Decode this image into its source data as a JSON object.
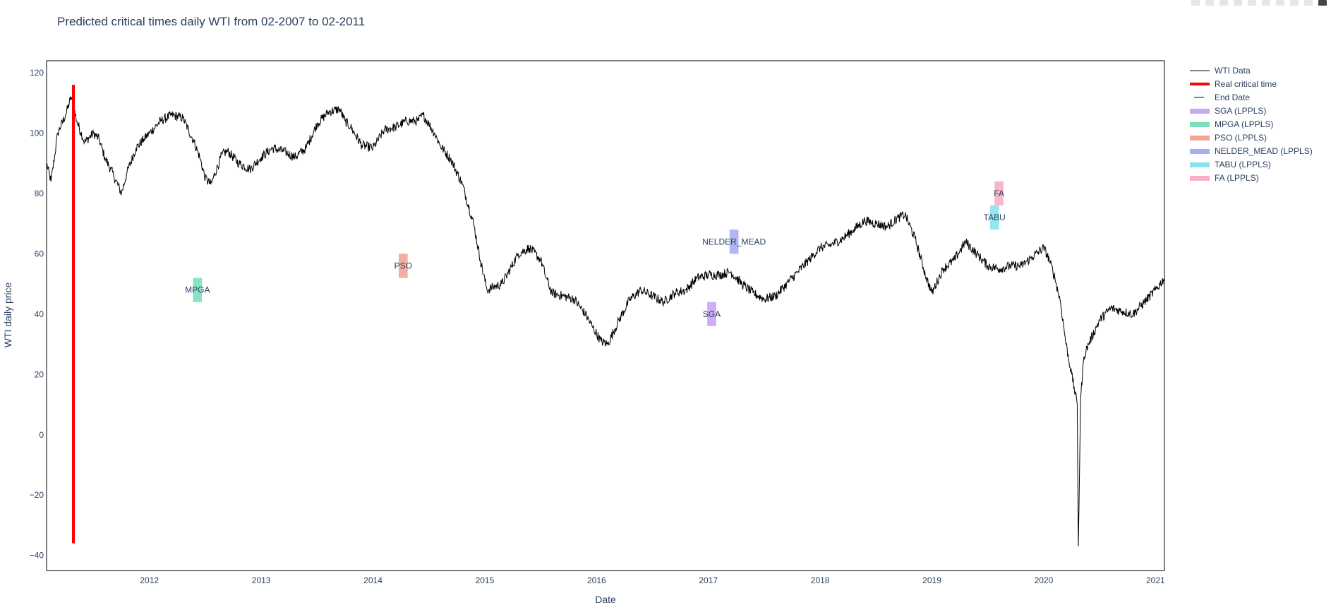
{
  "chart_data": {
    "type": "line",
    "title": "Predicted critical times daily WTI from 02-2007 to 02-2011",
    "xlabel": "Date",
    "ylabel": "WTI daily price",
    "xlim": [
      2011.08,
      2021.08
    ],
    "ylim": [
      -45,
      124
    ],
    "yticks": [
      -40,
      -20,
      0,
      20,
      40,
      60,
      80,
      100,
      120
    ],
    "xticks": [
      2012,
      2013,
      2014,
      2015,
      2016,
      2017,
      2018,
      2019,
      2020,
      2021
    ],
    "grid": false,
    "legend_position": "right",
    "series": [
      {
        "name": "WTI Data",
        "color": "#000000",
        "x": [
          2011.08,
          2011.12,
          2011.18,
          2011.25,
          2011.3,
          2011.35,
          2011.42,
          2011.5,
          2011.55,
          2011.6,
          2011.68,
          2011.75,
          2011.8,
          2011.88,
          2011.95,
          2012.0,
          2012.1,
          2012.2,
          2012.3,
          2012.4,
          2012.45,
          2012.5,
          2012.55,
          2012.65,
          2012.7,
          2012.8,
          2012.9,
          2013.0,
          2013.1,
          2013.2,
          2013.3,
          2013.4,
          2013.5,
          2013.6,
          2013.7,
          2013.75,
          2013.8,
          2013.9,
          2014.0,
          2014.1,
          2014.2,
          2014.3,
          2014.4,
          2014.45,
          2014.5,
          2014.55,
          2014.6,
          2014.7,
          2014.8,
          2014.9,
          2014.96,
          2015.02,
          2015.08,
          2015.15,
          2015.2,
          2015.3,
          2015.4,
          2015.5,
          2015.55,
          2015.6,
          2015.7,
          2015.8,
          2015.9,
          2015.96,
          2016.04,
          2016.1,
          2016.2,
          2016.3,
          2016.4,
          2016.5,
          2016.6,
          2016.7,
          2016.8,
          2016.9,
          2017.0,
          2017.1,
          2017.2,
          2017.3,
          2017.4,
          2017.5,
          2017.6,
          2017.7,
          2017.8,
          2017.9,
          2018.0,
          2018.1,
          2018.2,
          2018.3,
          2018.4,
          2018.5,
          2018.6,
          2018.7,
          2018.76,
          2018.85,
          2018.95,
          2019.0,
          2019.1,
          2019.2,
          2019.3,
          2019.4,
          2019.5,
          2019.6,
          2019.7,
          2019.8,
          2019.9,
          2020.0,
          2020.05,
          2020.1,
          2020.15,
          2020.2,
          2020.25,
          2020.3,
          2020.31,
          2020.33,
          2020.36,
          2020.4,
          2020.5,
          2020.6,
          2020.7,
          2020.8,
          2020.9,
          2021.0,
          2021.08
        ],
        "y": [
          90,
          84,
          100,
          106,
          112,
          104,
          97,
          100,
          98,
          92,
          86,
          80,
          87,
          95,
          98,
          100,
          104,
          106,
          105,
          97,
          92,
          85,
          83,
          93,
          94,
          90,
          88,
          92,
          95,
          94,
          92,
          95,
          103,
          107,
          108,
          104,
          102,
          96,
          95,
          101,
          102,
          104,
          104,
          106,
          103,
          100,
          96,
          91,
          83,
          70,
          58,
          48,
          49,
          50,
          53,
          60,
          62,
          58,
          52,
          47,
          46,
          45,
          40,
          36,
          31,
          30,
          38,
          45,
          48,
          46,
          44,
          47,
          48,
          52,
          53,
          53,
          54,
          50,
          47,
          45,
          46,
          50,
          54,
          58,
          62,
          63,
          65,
          68,
          71,
          70,
          69,
          72,
          73,
          65,
          52,
          47,
          55,
          58,
          64,
          60,
          56,
          55,
          56,
          56,
          59,
          62,
          58,
          52,
          44,
          30,
          20,
          10,
          -37,
          12,
          26,
          30,
          38,
          42,
          41,
          40,
          44,
          48,
          52
        ]
      }
    ],
    "critical_time": {
      "name": "Real critical time",
      "color": "#ff0000",
      "x": 2011.32,
      "y0": -36,
      "y1": 116
    },
    "end_date": {
      "name": "End Date",
      "color": "#7f7f7f"
    },
    "windows": [
      {
        "name": "SGA (LPPLS)",
        "label": "SGA",
        "color": "#c9a6f2",
        "x0": 2016.99,
        "x1": 2017.07,
        "y0": 36,
        "y1": 44
      },
      {
        "name": "MPGA (LPPLS)",
        "label": "MPGA",
        "color": "#7be0bb",
        "x0": 2012.39,
        "x1": 2012.47,
        "y0": 44,
        "y1": 52
      },
      {
        "name": "PSO (LPPLS)",
        "label": "PSO",
        "color": "#f2a698",
        "x0": 2014.23,
        "x1": 2014.31,
        "y0": 52,
        "y1": 60
      },
      {
        "name": "NELDER_MEAD (LPPLS)",
        "label": "NELDER_MEAD",
        "color": "#a8aef2",
        "x0": 2017.19,
        "x1": 2017.27,
        "y0": 60,
        "y1": 68
      },
      {
        "name": "TABU (LPPLS)",
        "label": "TABU",
        "color": "#8ae3f0",
        "x0": 2019.52,
        "x1": 2019.6,
        "y0": 68,
        "y1": 76
      },
      {
        "name": "FA (LPPLS)",
        "label": "FA",
        "color": "#f7b0c6",
        "x0": 2019.56,
        "x1": 2019.64,
        "y0": 76,
        "y1": 84
      }
    ]
  }
}
